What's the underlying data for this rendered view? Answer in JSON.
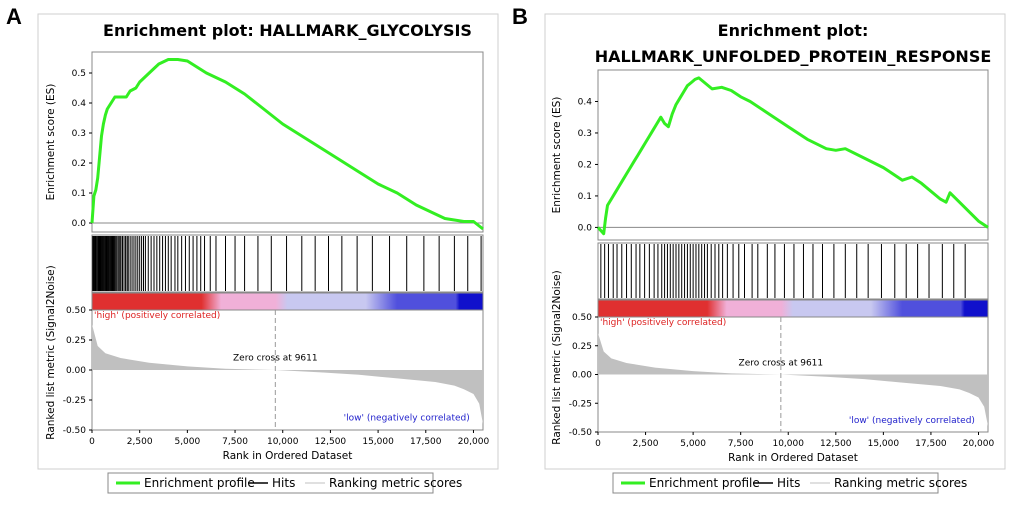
{
  "chart_data": [
    {
      "type": "line",
      "panel_label": "A",
      "title_lines": [
        "Enrichment plot: HALLMARK_GLYCOLYSIS"
      ],
      "ylabel_top": "Enrichment score (ES)",
      "ylabel_bottom": "Ranked list metric (Signal2Noise)",
      "xlabel": "Rank in Ordered Dataset",
      "x_range": [
        0,
        20500
      ],
      "x_ticks": [
        "0",
        "2,500",
        "5,000",
        "7,500",
        "10,000",
        "12,500",
        "15,000",
        "17,500",
        "20,000"
      ],
      "x_tick_values": [
        0,
        2500,
        5000,
        7500,
        10000,
        12500,
        15000,
        17500,
        20000
      ],
      "es_ylim": [
        -0.03,
        0.57
      ],
      "es_ticks": [
        "0.0",
        "0.1",
        "0.2",
        "0.3",
        "0.4",
        "0.5"
      ],
      "es_tick_values": [
        0.0,
        0.1,
        0.2,
        0.3,
        0.4,
        0.5
      ],
      "es_curve": {
        "x": [
          0,
          100,
          200,
          300,
          400,
          500,
          600,
          700,
          800,
          900,
          1000,
          1200,
          1500,
          1800,
          2000,
          2300,
          2500,
          3000,
          3500,
          4000,
          4500,
          5000,
          5500,
          6000,
          7000,
          8000,
          9000,
          10000,
          11000,
          12000,
          13000,
          14000,
          15000,
          16000,
          17000,
          18000,
          18500,
          19000,
          19500,
          20000,
          20500
        ],
        "y": [
          0.0,
          0.09,
          0.11,
          0.15,
          0.22,
          0.29,
          0.33,
          0.36,
          0.38,
          0.39,
          0.4,
          0.42,
          0.42,
          0.42,
          0.44,
          0.45,
          0.47,
          0.5,
          0.53,
          0.545,
          0.545,
          0.54,
          0.52,
          0.5,
          0.47,
          0.43,
          0.38,
          0.33,
          0.29,
          0.25,
          0.21,
          0.17,
          0.13,
          0.1,
          0.06,
          0.03,
          0.015,
          0.01,
          0.005,
          0.005,
          -0.02
        ]
      },
      "hits": [
        40,
        80,
        120,
        160,
        200,
        250,
        300,
        340,
        380,
        420,
        470,
        520,
        560,
        600,
        650,
        700,
        740,
        780,
        820,
        860,
        900,
        950,
        1000,
        1050,
        1100,
        1150,
        1200,
        1260,
        1320,
        1400,
        1460,
        1520,
        1600,
        1680,
        1760,
        1840,
        1900,
        2000,
        2100,
        2200,
        2300,
        2400,
        2500,
        2600,
        2700,
        2800,
        2950,
        3100,
        3250,
        3400,
        3550,
        3700,
        3850,
        4000,
        4150,
        4350,
        4500,
        4700,
        4900,
        5100,
        5300,
        5500,
        5700,
        5900,
        6200,
        6500,
        7000,
        7500,
        8000,
        8700,
        9400,
        10200,
        11000,
        11700,
        12400,
        13100,
        13900,
        14700,
        15600,
        16500,
        17400,
        18200,
        19000,
        19700,
        20400
      ],
      "metric_ticks": [
        "0.50",
        "0.25",
        "0.00",
        "-0.25",
        "-0.50"
      ],
      "metric_tick_values": [
        0.5,
        0.25,
        0.0,
        -0.25,
        -0.5
      ],
      "metric_ylim": [
        -0.5,
        0.5
      ],
      "metric_curve": {
        "x": [
          0,
          300,
          700,
          1500,
          3000,
          5000,
          7000,
          9611,
          12000,
          14000,
          16000,
          18000,
          19000,
          19500,
          20000,
          20300,
          20500
        ],
        "y": [
          0.38,
          0.2,
          0.14,
          0.1,
          0.06,
          0.03,
          0.01,
          0.0,
          -0.02,
          -0.04,
          -0.07,
          -0.1,
          -0.13,
          -0.16,
          -0.2,
          -0.28,
          -0.45
        ]
      },
      "zero_cross_x": 9611,
      "zero_cross_label": "Zero cross at 9611",
      "high_label": "'high' (positively correlated)",
      "low_label": "'low' (negatively correlated)",
      "legend": [
        "Enrichment profile",
        "Hits",
        "Ranking metric scores"
      ]
    },
    {
      "type": "line",
      "panel_label": "B",
      "title_lines": [
        "Enrichment plot:",
        "HALLMARK_UNFOLDED_PROTEIN_RESPONSE"
      ],
      "ylabel_top": "Enrichment score (ES)",
      "ylabel_bottom": "Ranked list metric (Signal2Noise)",
      "xlabel": "Rank in Ordered Dataset",
      "x_range": [
        0,
        20500
      ],
      "x_ticks": [
        "0",
        "2,500",
        "5,000",
        "7,500",
        "10,000",
        "12,500",
        "15,000",
        "17,500",
        "20,000"
      ],
      "x_tick_values": [
        0,
        2500,
        5000,
        7500,
        10000,
        12500,
        15000,
        17500,
        20000
      ],
      "es_ylim": [
        -0.04,
        0.5
      ],
      "es_ticks": [
        "0.0",
        "0.1",
        "0.2",
        "0.3",
        "0.4"
      ],
      "es_tick_values": [
        0.0,
        0.1,
        0.2,
        0.3,
        0.4
      ],
      "es_curve": {
        "x": [
          0,
          300,
          400,
          500,
          700,
          900,
          1100,
          1300,
          1500,
          1700,
          1900,
          2100,
          2300,
          2500,
          2700,
          2900,
          3100,
          3300,
          3500,
          3700,
          3900,
          4100,
          4300,
          4500,
          4700,
          4900,
          5100,
          5300,
          5500,
          6000,
          6500,
          7000,
          7500,
          8000,
          9000,
          10000,
          11000,
          12000,
          12500,
          13000,
          14000,
          15000,
          16000,
          16500,
          17000,
          18000,
          18300,
          18500,
          19000,
          20000,
          20500
        ],
        "y": [
          0.0,
          -0.02,
          0.03,
          0.07,
          0.09,
          0.11,
          0.13,
          0.15,
          0.17,
          0.19,
          0.21,
          0.23,
          0.25,
          0.27,
          0.29,
          0.31,
          0.33,
          0.35,
          0.33,
          0.32,
          0.36,
          0.39,
          0.41,
          0.43,
          0.45,
          0.46,
          0.47,
          0.475,
          0.465,
          0.44,
          0.445,
          0.435,
          0.415,
          0.4,
          0.36,
          0.32,
          0.28,
          0.25,
          0.245,
          0.25,
          0.22,
          0.19,
          0.15,
          0.16,
          0.14,
          0.09,
          0.08,
          0.11,
          0.08,
          0.02,
          0.0
        ]
      },
      "hits": [
        150,
        350,
        550,
        800,
        1000,
        1250,
        1500,
        1750,
        2000,
        2200,
        2450,
        2700,
        2950,
        3150,
        3350,
        3500,
        3650,
        3800,
        3950,
        4100,
        4250,
        4400,
        4550,
        4700,
        4850,
        5000,
        5150,
        5300,
        5450,
        5600,
        5750,
        5950,
        6150,
        6350,
        6550,
        6800,
        7100,
        7400,
        7700,
        8100,
        8400,
        8900,
        9300,
        9800,
        10300,
        10800,
        11300,
        11800,
        12400,
        13000,
        13600,
        14200,
        14900,
        15600,
        16200,
        16800,
        17400,
        18100,
        18700,
        19300
      ],
      "metric_ticks": [
        "0.50",
        "0.25",
        "0.00",
        "-0.25",
        "-0.50"
      ],
      "metric_tick_values": [
        0.5,
        0.25,
        0.0,
        -0.25,
        -0.5
      ],
      "metric_ylim": [
        -0.5,
        0.5
      ],
      "metric_curve": {
        "x": [
          0,
          300,
          700,
          1500,
          3000,
          5000,
          7000,
          9611,
          12000,
          14000,
          16000,
          18000,
          19000,
          19500,
          20000,
          20300,
          20500
        ],
        "y": [
          0.36,
          0.2,
          0.14,
          0.1,
          0.06,
          0.03,
          0.01,
          0.0,
          -0.02,
          -0.04,
          -0.07,
          -0.1,
          -0.13,
          -0.16,
          -0.2,
          -0.28,
          -0.45
        ]
      },
      "zero_cross_x": 9611,
      "zero_cross_label": "Zero cross at 9611",
      "high_label": "'high' (positively correlated)",
      "low_label": "'low' (negatively correlated)",
      "legend": [
        "Enrichment profile",
        "Hits",
        "Ranking metric scores"
      ]
    }
  ],
  "colors": {
    "curve": "#33ee22",
    "hits": "#000000",
    "metric_fill": "#c0c0c0",
    "high_text": "#dd2222",
    "low_text": "#2222cc",
    "bar_red": "#e03030",
    "bar_pink": "#f0b0d8",
    "bar_lavender": "#c8c8f0",
    "bar_blue": "#5050dd",
    "bar_navy": "#1010cc"
  }
}
